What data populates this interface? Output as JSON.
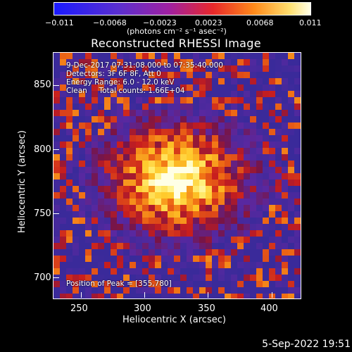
{
  "colorbar": {
    "ticks": [
      "−0.011",
      "−0.0068",
      "−0.0023",
      "0.0023",
      "0.0068",
      "0.011"
    ],
    "units": "(photons cm⁻² s⁻¹ asec⁻²)"
  },
  "title": "Reconstructed RHESSI Image",
  "annotations": {
    "time": "9-Dec-2017 07:31:08.000 to 07:35:40.000",
    "detectors": "Detectors: 3F 6F 8F, Att 0",
    "energy": "Energy Range: 6.0 - 12.0 keV",
    "clean": "Clean     Total counts: 1.66E+04",
    "peak": "Position of Peak = [355,780]"
  },
  "xaxis": {
    "label": "Heliocentric X (arcsec)",
    "ticks": [
      "250",
      "300",
      "350",
      "400"
    ]
  },
  "yaxis": {
    "label": "Heliocentric Y (arcsec)",
    "ticks": [
      "850",
      "800",
      "750",
      "700"
    ]
  },
  "footer": {
    "timestamp": "5-Sep-2022 19:51"
  },
  "colors": {
    "background": "#000000",
    "text": "#ffffff"
  }
}
